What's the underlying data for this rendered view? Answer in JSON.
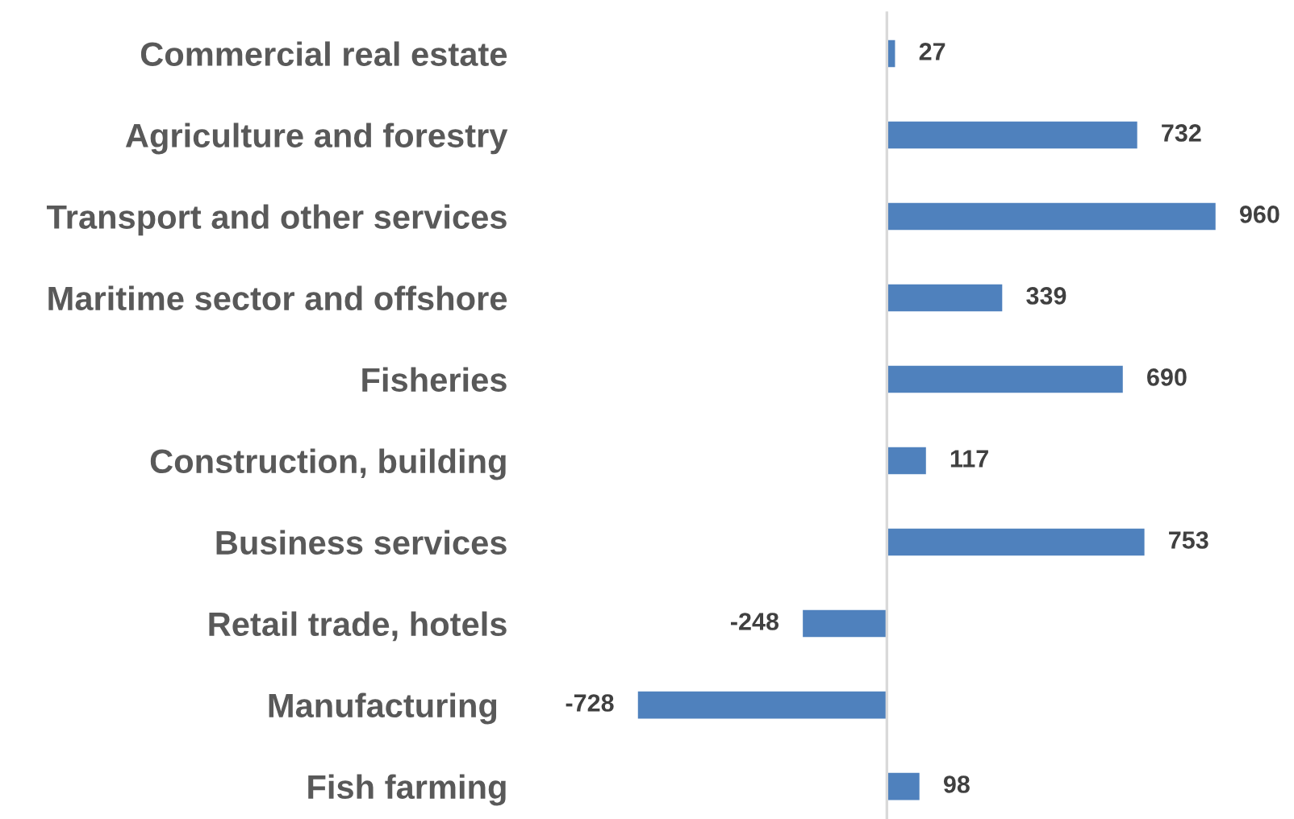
{
  "chart_data": {
    "type": "bar",
    "orientation": "horizontal",
    "categories": [
      "Commercial real estate",
      "Agriculture and forestry",
      "Transport and other services",
      "Maritime sector and offshore",
      "Fisheries",
      "Construction, building",
      "Business services",
      "Retail trade, hotels",
      "Manufacturing ",
      "Fish farming"
    ],
    "values": [
      27,
      732,
      960,
      339,
      690,
      117,
      753,
      -248,
      -728,
      98
    ],
    "color": "#4f81bd",
    "data_labels": true,
    "tick_labels": "y"
  }
}
